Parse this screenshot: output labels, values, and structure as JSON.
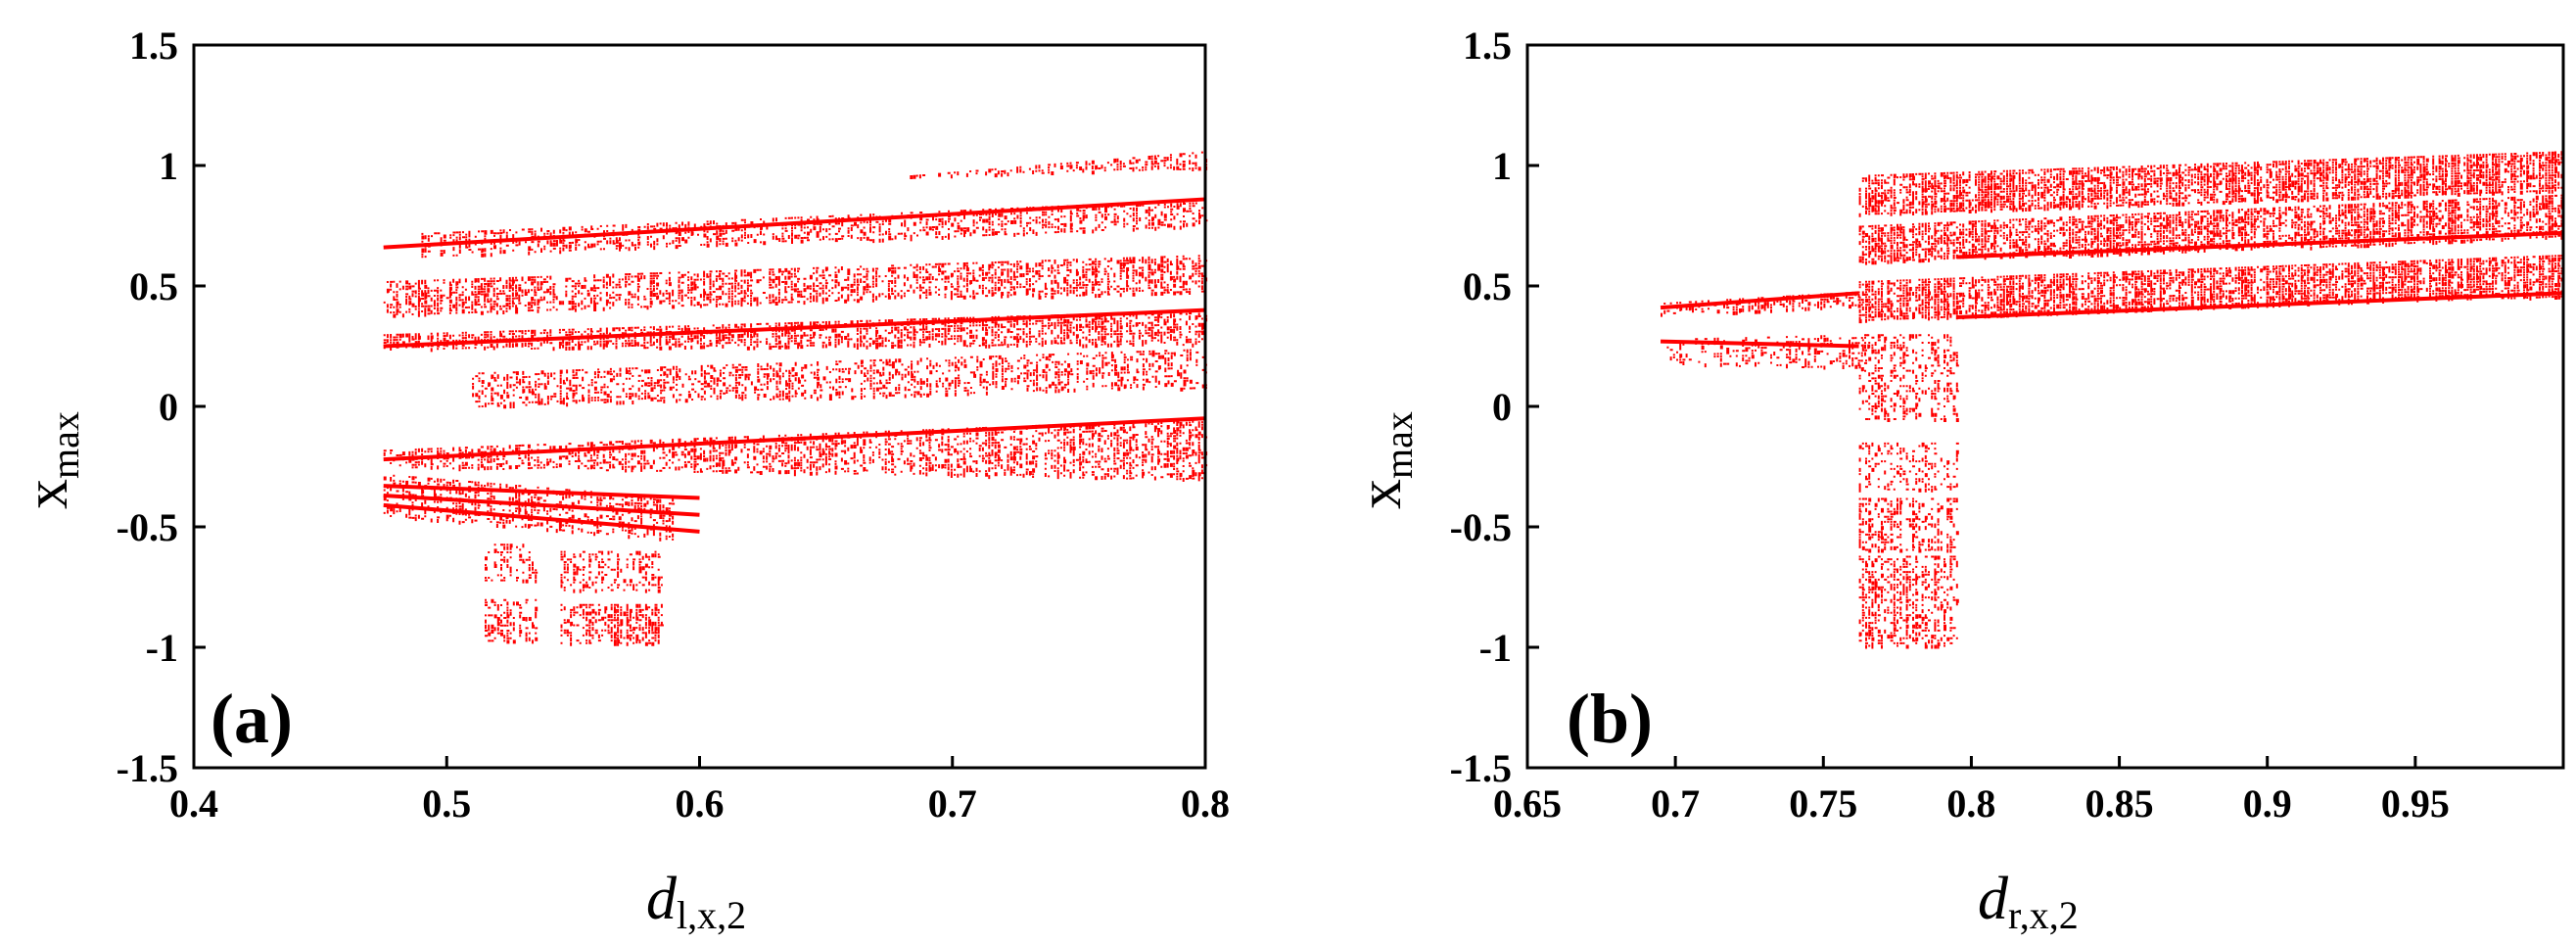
{
  "chart_data": [
    {
      "type": "scatter",
      "panel_label": "(a)",
      "xlabel": "d",
      "xlabel_sub": "l,x,2",
      "ylabel": "x",
      "ylabel_sub": "max",
      "xlim": [
        0.4,
        0.8
      ],
      "ylim": [
        -1.5,
        1.5
      ],
      "xticks": [
        "0.4",
        "0.5",
        "0.6",
        "0.7",
        "0.8"
      ],
      "yticks": [
        "1.5",
        "1",
        "0.5",
        "0",
        "-0.5",
        "-1",
        "-1.5"
      ],
      "marker_color": "#ff0000",
      "grid": false,
      "bands": [
        {
          "x": [
            0.475,
            0.8
          ],
          "y0": [
            0.9,
            0.99
          ],
          "y1": [
            0.78,
            1.06
          ],
          "density": 0.55
        },
        {
          "x": [
            0.49,
            0.8
          ],
          "y0": [
            0.62,
            0.75
          ],
          "y1": [
            0.72,
            0.86
          ],
          "density": 0.45
        },
        {
          "x": [
            0.475,
            0.8
          ],
          "y0": [
            0.38,
            0.48
          ],
          "y1": [
            0.52,
            0.63
          ],
          "density": 0.55
        },
        {
          "x": [
            0.475,
            0.8
          ],
          "y0": [
            0.24,
            0.26
          ],
          "y1": [
            0.3,
            0.4
          ],
          "density": 0.6
        },
        {
          "x": [
            0.51,
            0.8
          ],
          "y0": [
            0.0,
            0.08
          ],
          "y1": [
            0.14,
            0.24
          ],
          "density": 0.45
        },
        {
          "x": [
            0.475,
            0.8
          ],
          "y0": [
            -0.25,
            -0.3
          ],
          "y1": [
            -0.18,
            -0.05
          ],
          "density": 0.5
        },
        {
          "x": [
            0.475,
            0.59
          ],
          "y0": [
            -0.45,
            -0.55
          ],
          "y1": [
            -0.28,
            -0.38
          ],
          "density": 0.4
        },
        {
          "x": [
            0.515,
            0.535
          ],
          "y0": [
            -0.72,
            -0.72
          ],
          "y1": [
            -0.57,
            -0.57
          ],
          "density": 0.35
        },
        {
          "x": [
            0.545,
            0.585
          ],
          "y0": [
            -0.76,
            -0.76
          ],
          "y1": [
            -0.6,
            -0.6
          ],
          "density": 0.4
        },
        {
          "x": [
            0.515,
            0.535
          ],
          "y0": [
            -0.97,
            -0.97
          ],
          "y1": [
            -0.8,
            -0.8
          ],
          "density": 0.45
        },
        {
          "x": [
            0.545,
            0.585
          ],
          "y0": [
            -0.98,
            -0.98
          ],
          "y1": [
            -0.82,
            -0.82
          ],
          "density": 0.6
        }
      ],
      "lines": [
        {
          "x": [
            0.475,
            0.8
          ],
          "y": [
            0.25,
            0.4
          ]
        },
        {
          "x": [
            0.475,
            0.8
          ],
          "y": [
            -0.22,
            -0.05
          ]
        },
        {
          "x": [
            0.475,
            0.8
          ],
          "y": [
            0.66,
            0.86
          ]
        },
        {
          "x": [
            0.475,
            0.6
          ],
          "y": [
            -0.33,
            -0.38
          ]
        },
        {
          "x": [
            0.475,
            0.6
          ],
          "y": [
            -0.37,
            -0.45
          ]
        },
        {
          "x": [
            0.475,
            0.6
          ],
          "y": [
            -0.41,
            -0.52
          ]
        }
      ]
    },
    {
      "type": "scatter",
      "panel_label": "(b)",
      "xlabel": "d",
      "xlabel_sub": "r,x,2",
      "ylabel": "x",
      "ylabel_sub": "max",
      "xlim": [
        0.65,
        1.0
      ],
      "ylim": [
        -1.5,
        1.5
      ],
      "xticks": [
        "0.65",
        "0.7",
        "0.75",
        "0.8",
        "0.85",
        "0.9",
        "0.95"
      ],
      "yticks": [
        "1.5",
        "1",
        "0.5",
        "0",
        "-0.5",
        "-1",
        "-1.5"
      ],
      "marker_color": "#ff0000",
      "grid": false,
      "bands": [
        {
          "x": [
            0.695,
            0.765
          ],
          "y0": [
            0.38,
            0.42
          ],
          "y1": [
            0.43,
            0.48
          ],
          "density": 0.5
        },
        {
          "x": [
            0.695,
            0.765
          ],
          "y0": [
            0.18,
            0.15
          ],
          "y1": [
            0.28,
            0.3
          ],
          "density": 0.35
        },
        {
          "x": [
            0.762,
            1.0
          ],
          "y0": [
            0.8,
            0.9
          ],
          "y1": [
            0.96,
            1.06
          ],
          "density": 0.85
        },
        {
          "x": [
            0.762,
            1.0
          ],
          "y0": [
            0.6,
            0.7
          ],
          "y1": [
            0.75,
            0.88
          ],
          "density": 0.75
        },
        {
          "x": [
            0.762,
            1.0
          ],
          "y0": [
            0.36,
            0.46
          ],
          "y1": [
            0.52,
            0.63
          ],
          "density": 0.85
        },
        {
          "x": [
            0.762,
            0.795
          ],
          "y0": [
            -0.05,
            -0.05
          ],
          "y1": [
            0.3,
            0.3
          ],
          "density": 0.35
        },
        {
          "x": [
            0.762,
            0.795
          ],
          "y0": [
            -0.35,
            -0.35
          ],
          "y1": [
            -0.15,
            -0.15
          ],
          "density": 0.35
        },
        {
          "x": [
            0.762,
            0.795
          ],
          "y0": [
            -0.6,
            -0.6
          ],
          "y1": [
            -0.38,
            -0.38
          ],
          "density": 0.5
        },
        {
          "x": [
            0.762,
            0.795
          ],
          "y0": [
            -1.0,
            -1.0
          ],
          "y1": [
            -0.62,
            -0.62
          ],
          "density": 0.55
        }
      ],
      "lines": [
        {
          "x": [
            0.695,
            0.762
          ],
          "y": [
            0.41,
            0.47
          ]
        },
        {
          "x": [
            0.695,
            0.762
          ],
          "y": [
            0.27,
            0.25
          ]
        },
        {
          "x": [
            0.795,
            1.0
          ],
          "y": [
            0.37,
            0.47
          ]
        },
        {
          "x": [
            0.795,
            1.0
          ],
          "y": [
            0.62,
            0.72
          ]
        }
      ]
    }
  ]
}
